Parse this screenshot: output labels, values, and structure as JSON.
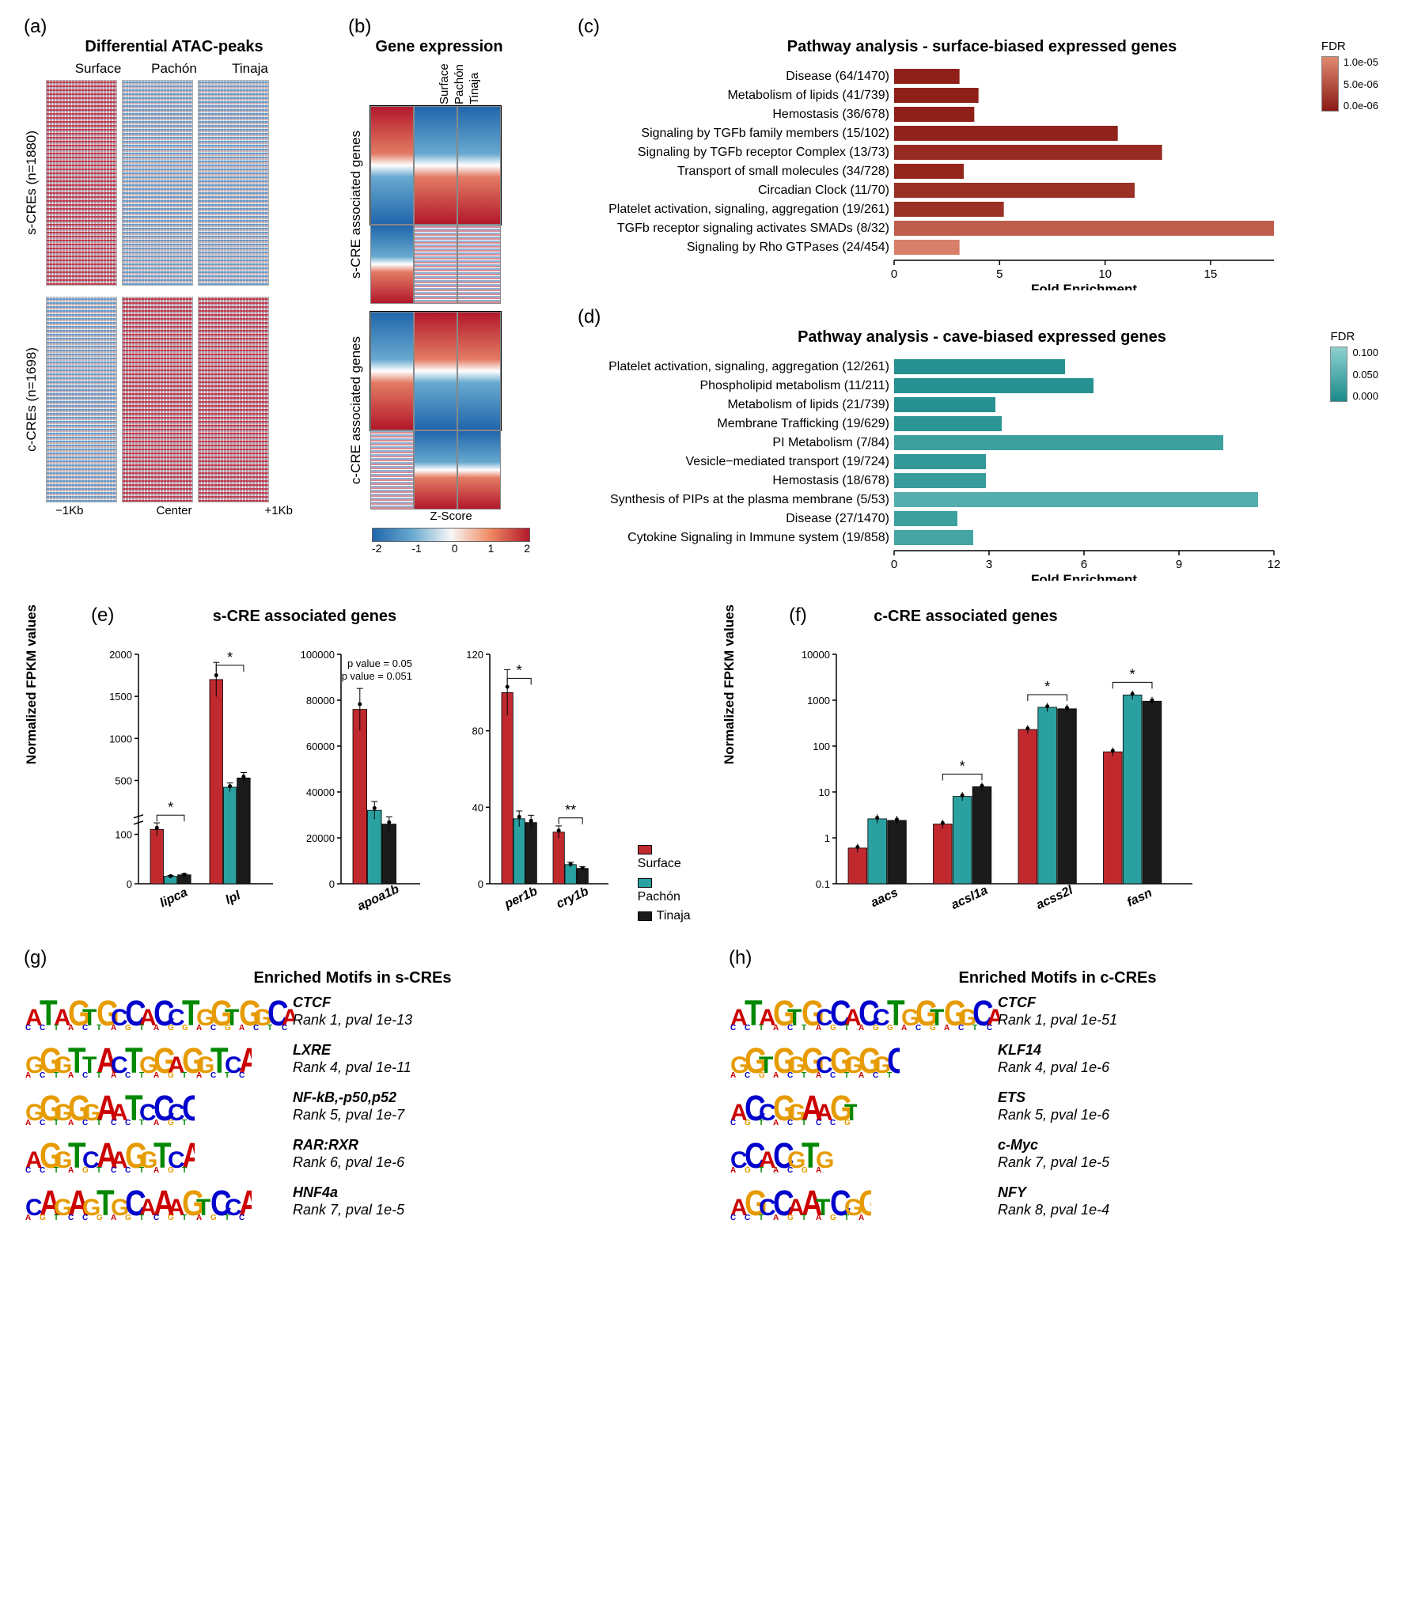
{
  "colors": {
    "surface": "#c02a2f",
    "pachon": "#2aa0a0",
    "tinaja": "#1b1b1b",
    "heat_low": "#2166ac",
    "heat_mid": "#f7f7f7",
    "heat_high": "#b2182b",
    "teal_dark": "#1b8a8a",
    "teal_light": "#8fd1d1",
    "red_dark": "#8a1a14",
    "red_light": "#e08a72"
  },
  "panelA": {
    "label": "(a)",
    "title": "Differential ATAC-peaks",
    "columns": [
      "Surface",
      "Pachón",
      "Tinaja"
    ],
    "row_groups": [
      {
        "label": "s-CREs (n=1880)"
      },
      {
        "label": "c-CREs (n=1698)"
      }
    ],
    "xaxis": [
      "−1Kb",
      "Center",
      "+1Kb"
    ]
  },
  "panelB": {
    "label": "(b)",
    "title": "Gene expression",
    "columns": [
      "Surface",
      "Pachón",
      "Tinaja"
    ],
    "row_groups": [
      {
        "label": "s-CRE associated genes"
      },
      {
        "label": "c-CRE associated genes"
      }
    ],
    "zscore": {
      "label": "Z-Score",
      "ticks": [
        "-2",
        "-1",
        "0",
        "1",
        "2"
      ]
    }
  },
  "panelC": {
    "label": "(c)",
    "title": "Pathway analysis - surface-biased expressed genes",
    "xlabel": "Fold Enrichment",
    "xlim": [
      0,
      18
    ],
    "xticks": [
      0,
      5,
      10,
      15
    ],
    "fdr": {
      "label": "FDR",
      "ticks": [
        "1.0e-05",
        "5.0e-06",
        "0.0e-06"
      ],
      "grad": [
        "#e08a72",
        "#8a1a14"
      ]
    },
    "bars": [
      {
        "label": "Disease (64/1470)",
        "val": 3.1,
        "fdr": 0.05
      },
      {
        "label": "Metabolism of lipids (41/739)",
        "val": 4.0,
        "fdr": 0.05
      },
      {
        "label": "Hemostasis (36/678)",
        "val": 3.8,
        "fdr": 0.05
      },
      {
        "label": "Signaling by TGFb family members (15/102)",
        "val": 10.6,
        "fdr": 0.08
      },
      {
        "label": "Signaling by TGFb receptor Complex (13/73)",
        "val": 12.7,
        "fdr": 0.15
      },
      {
        "label": "Transport of small molecules (34/728)",
        "val": 3.3,
        "fdr": 0.1
      },
      {
        "label": "Circadian Clock (11/70)",
        "val": 11.4,
        "fdr": 0.2
      },
      {
        "label": "Platelet activation, signaling, aggregation (19/261)",
        "val": 5.2,
        "fdr": 0.2
      },
      {
        "label": "TGFb receptor signaling activates SMADs (8/32)",
        "val": 18.0,
        "fdr": 0.6
      },
      {
        "label": "Signaling by Rho GTPases (24/454)",
        "val": 3.1,
        "fdr": 0.9
      }
    ]
  },
  "panelD": {
    "label": "(d)",
    "title": "Pathway analysis - cave-biased expressed genes",
    "xlabel": "Fold Enrichment",
    "xlim": [
      0,
      12
    ],
    "xticks": [
      0,
      3,
      6,
      9,
      12
    ],
    "fdr": {
      "label": "FDR",
      "ticks": [
        "0.100",
        "0.050",
        "0.000"
      ],
      "grad": [
        "#8fd1d1",
        "#1b8a8a"
      ]
    },
    "bars": [
      {
        "label": "Platelet activation, signaling, aggregation (12/261)",
        "val": 5.4,
        "fdr": 0.1
      },
      {
        "label": "Phospholipid metabolism (11/211)",
        "val": 6.3,
        "fdr": 0.1
      },
      {
        "label": "Metabolism of lipids (21/739)",
        "val": 3.2,
        "fdr": 0.1
      },
      {
        "label": "Membrane Trafficking (19/629)",
        "val": 3.4,
        "fdr": 0.15
      },
      {
        "label": "PI Metabolism (7/84)",
        "val": 10.4,
        "fdr": 0.3
      },
      {
        "label": "Vesicle−mediated transport (19/724)",
        "val": 2.9,
        "fdr": 0.2
      },
      {
        "label": "Hemostasis (18/678)",
        "val": 2.9,
        "fdr": 0.25
      },
      {
        "label": "Synthesis of PIPs at the plasma membrane (5/53)",
        "val": 11.5,
        "fdr": 0.5
      },
      {
        "label": "Disease (27/1470)",
        "val": 2.0,
        "fdr": 0.3
      },
      {
        "label": "Cytokine Signaling in Immune system (19/858)",
        "val": 2.5,
        "fdr": 0.35
      }
    ]
  },
  "panelE": {
    "label": "(e)",
    "title": "s-CRE associated genes",
    "ylabel": "Normalized FPKM values",
    "legend": [
      "Surface",
      "Pachón",
      "Tinaja"
    ],
    "sub": [
      {
        "ymax": 2000,
        "yticks": [
          0,
          100,
          500,
          1000,
          1500,
          2000
        ],
        "broken": true,
        "genes": [
          {
            "name": "lipca",
            "s": 110,
            "p": 15,
            "t": 18,
            "sig": "*"
          },
          {
            "name": "lpl",
            "s": 1700,
            "p": 420,
            "t": 530,
            "sig": "*",
            "top": "*"
          }
        ]
      },
      {
        "ymax": 100000,
        "yticks": [
          0,
          20000,
          40000,
          60000,
          80000,
          100000
        ],
        "annot": [
          "p value = 0.05",
          "p value = 0.051"
        ],
        "genes": [
          {
            "name": "apoa1b",
            "s": 76000,
            "p": 32000,
            "t": 26000
          }
        ]
      },
      {
        "ymax": 120,
        "yticks": [
          0,
          40,
          80,
          120
        ],
        "genes": [
          {
            "name": "per1b",
            "s": 100,
            "p": 34,
            "t": 32,
            "sig": "*"
          },
          {
            "name": "cry1b",
            "s": 27,
            "p": 10,
            "t": 8,
            "sig": "**"
          }
        ]
      }
    ]
  },
  "panelF": {
    "label": "(f)",
    "title": "c-CRE associated genes",
    "ylabel": "Normalized FPKM values",
    "ymin": 0.1,
    "ymax": 10000,
    "log": true,
    "yticks": [
      0.1,
      1,
      10,
      100,
      1000,
      10000
    ],
    "genes": [
      {
        "name": "aacs",
        "s": 0.6,
        "p": 2.6,
        "t": 2.4
      },
      {
        "name": "acsl1a",
        "s": 2,
        "p": 8,
        "t": 13,
        "sig": "*"
      },
      {
        "name": "acss2l",
        "s": 230,
        "p": 700,
        "t": 650,
        "sig": "*"
      },
      {
        "name": "fasn",
        "s": 75,
        "p": 1300,
        "t": 950,
        "sig": "*"
      }
    ]
  },
  "panelG": {
    "label": "(g)",
    "title": "Enriched Motifs in s-CREs",
    "motifs": [
      {
        "seq": "ATAGTGCCACCTGGTGGCA",
        "name": "CTCF",
        "meta": "Rank 1, pval 1e-13"
      },
      {
        "seq": "GGGTTACTGGAGGTCA",
        "name": "LXRE",
        "meta": "Rank 4, pval 1e-11"
      },
      {
        "seq": "GGGGGAATCCCC",
        "name": "NF-kB,-p50,p52",
        "meta": "Rank 5, pval 1e-7"
      },
      {
        "seq": "AGGTCAAGGTCA",
        "name": "RAR:RXR",
        "meta": "Rank 6, pval 1e-6"
      },
      {
        "seq": "CAGAGTGCAAAGTCCA",
        "name": "HNF4a",
        "meta": "Rank 7, pval 1e-5"
      }
    ]
  },
  "panelH": {
    "label": "(h)",
    "title": "Enriched Motifs in c-CREs",
    "motifs": [
      {
        "seq": "ATAGTGCCACCTGGTGGCA",
        "name": "CTCF",
        "meta": "Rank 1, pval 1e-51"
      },
      {
        "seq": "GGTGGGCGGGGC",
        "name": "KLF14",
        "meta": "Rank 4, pval 1e-6"
      },
      {
        "seq": "ACCGGAAGT",
        "name": "ETS",
        "meta": "Rank 5, pval 1e-6"
      },
      {
        "seq": "CCACGTG",
        "name": "c-Myc",
        "meta": "Rank 7, pval 1e-5"
      },
      {
        "seq": "AGCCAATCGG",
        "name": "NFY",
        "meta": "Rank 8, pval 1e-4"
      }
    ]
  }
}
